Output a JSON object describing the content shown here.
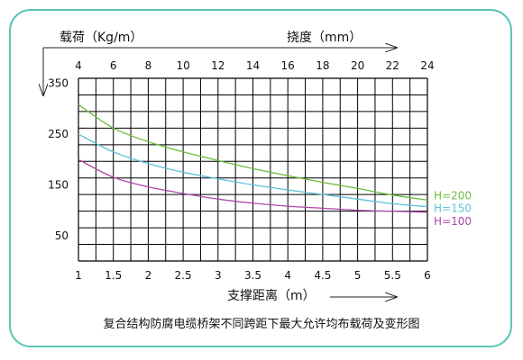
{
  "caption": "复合结构防腐电缆桥架不同跨距下最大允许均布载荷及变形图",
  "top_left_label": "载荷（Kg/m）",
  "top_right_label": "挠度（mm）",
  "bottom_label": "支撑距离（m）",
  "chart_data": {
    "type": "line",
    "title": "复合结构防腐电缆桥架不同跨距下最大允许均布载荷及变形图",
    "xlabel": "支撑距离（m）",
    "ylabel": "载荷（Kg/m）",
    "x2label": "挠度（mm）",
    "xlim": [
      1,
      6
    ],
    "ylim": [
      0,
      360
    ],
    "x2lim": [
      4,
      24
    ],
    "x_ticks": [
      1,
      1.5,
      2,
      2.5,
      3,
      3.5,
      4,
      4.5,
      5,
      5.5,
      6
    ],
    "x_tick_labels": [
      "1",
      "1.5",
      "2",
      "2.5",
      "3",
      "3.5",
      "4",
      "4.5",
      "5",
      "5.5",
      "6"
    ],
    "y_ticks": [
      50,
      150,
      250,
      350
    ],
    "y_tick_labels": [
      "50",
      "150",
      "250",
      "350"
    ],
    "x2_ticks": [
      4,
      6,
      8,
      10,
      12,
      14,
      16,
      18,
      20,
      22,
      24
    ],
    "x2_tick_labels": [
      "4",
      "6",
      "8",
      "10",
      "12",
      "14",
      "16",
      "18",
      "20",
      "22",
      "24"
    ],
    "grid": true,
    "colors": {
      "H=200": "#6dbb3b",
      "H=150": "#59c3d6",
      "H=100": "#b047a8",
      "frame": "#5cc5b6"
    },
    "series": [
      {
        "name": "H=200",
        "x": [
          1,
          1.5,
          2,
          2.5,
          3,
          3.5,
          4,
          4.5,
          5,
          5.5,
          6
        ],
        "values": [
          308,
          262,
          235,
          215,
          198,
          182,
          168,
          155,
          143,
          130,
          120
        ]
      },
      {
        "name": "H=150",
        "x": [
          1,
          1.5,
          2,
          2.5,
          3,
          3.5,
          4,
          4.5,
          5,
          5.5,
          6
        ],
        "values": [
          250,
          215,
          192,
          175,
          162,
          150,
          140,
          131,
          122,
          113,
          107
        ]
      },
      {
        "name": "H=100",
        "x": [
          1,
          1.5,
          2,
          2.5,
          3,
          3.5,
          4,
          4.5,
          5,
          5.5,
          6
        ],
        "values": [
          200,
          165,
          146,
          133,
          122,
          114,
          108,
          104,
          100,
          98,
          96
        ]
      }
    ]
  }
}
